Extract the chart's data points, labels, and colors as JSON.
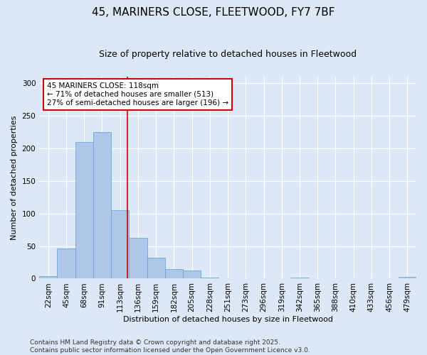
{
  "title": "45, MARINERS CLOSE, FLEETWOOD, FY7 7BF",
  "subtitle": "Size of property relative to detached houses in Fleetwood",
  "xlabel": "Distribution of detached houses by size in Fleetwood",
  "ylabel": "Number of detached properties",
  "bar_labels": [
    "22sqm",
    "45sqm",
    "68sqm",
    "91sqm",
    "113sqm",
    "136sqm",
    "159sqm",
    "182sqm",
    "205sqm",
    "228sqm",
    "251sqm",
    "273sqm",
    "296sqm",
    "319sqm",
    "342sqm",
    "365sqm",
    "388sqm",
    "410sqm",
    "433sqm",
    "456sqm",
    "479sqm"
  ],
  "bar_values": [
    4,
    46,
    210,
    225,
    105,
    63,
    32,
    15,
    13,
    2,
    0,
    0,
    0,
    0,
    2,
    0,
    0,
    0,
    0,
    0,
    3
  ],
  "bar_color": "#aec6e8",
  "bar_edgecolor": "#6aaad4",
  "vline_x": 4.42,
  "annotation_text": "45 MARINERS CLOSE: 118sqm\n← 71% of detached houses are smaller (513)\n27% of semi-detached houses are larger (196) →",
  "annotation_box_color": "#ffffff",
  "annotation_box_edgecolor": "#cc0000",
  "vline_color": "#cc0000",
  "ylim": [
    0,
    310
  ],
  "yticks": [
    0,
    50,
    100,
    150,
    200,
    250,
    300
  ],
  "bg_color": "#dce8f5",
  "plot_bg_color": "#dce8f5",
  "footer_text": "Contains HM Land Registry data © Crown copyright and database right 2025.\nContains public sector information licensed under the Open Government Licence v3.0.",
  "title_fontsize": 11,
  "subtitle_fontsize": 9,
  "axis_label_fontsize": 8,
  "tick_fontsize": 7.5,
  "annotation_fontsize": 7.5,
  "footer_fontsize": 6.5
}
